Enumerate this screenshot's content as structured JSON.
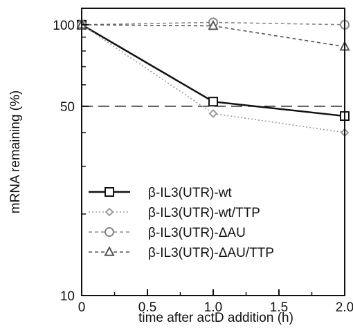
{
  "chart_data": {
    "type": "line",
    "title": "",
    "xlabel": "time after actD addition (h)",
    "ylabel": "mRNA remaining (%)",
    "xlim": [
      0,
      2.0
    ],
    "ylim": [
      10,
      115
    ],
    "yscale": "log",
    "x_ticks": [
      "0",
      "0.5",
      "1.0",
      "1.5",
      "2.0"
    ],
    "y_ticks": [
      "10",
      "50",
      "100"
    ],
    "reference_line": {
      "y": 50,
      "style": "dashed"
    },
    "legend_position": "bottom-left",
    "series": [
      {
        "name": "β-IL3(UTR)-wt",
        "marker": "square",
        "line_style": "solid",
        "color": "#111111",
        "x": [
          0,
          1.0,
          2.0
        ],
        "y": [
          100,
          52,
          46
        ]
      },
      {
        "name": "β-IL3(UTR)-wt/TTP",
        "marker": "diamond",
        "line_style": "dotted",
        "color": "#9a9a9a",
        "x": [
          0,
          1.0,
          2.0
        ],
        "y": [
          100,
          47,
          40
        ]
      },
      {
        "name": "β-IL3(UTR)-ΔAU",
        "marker": "circle",
        "line_style": "dashed",
        "color": "#888888",
        "x": [
          0,
          1.0,
          2.0
        ],
        "y": [
          100,
          102,
          100
        ]
      },
      {
        "name": "β-IL3(UTR)-ΔAU/TTP",
        "marker": "triangle",
        "line_style": "dashed",
        "color": "#555555",
        "x": [
          0,
          1.0,
          2.0
        ],
        "y": [
          100,
          99,
          83
        ]
      }
    ]
  }
}
